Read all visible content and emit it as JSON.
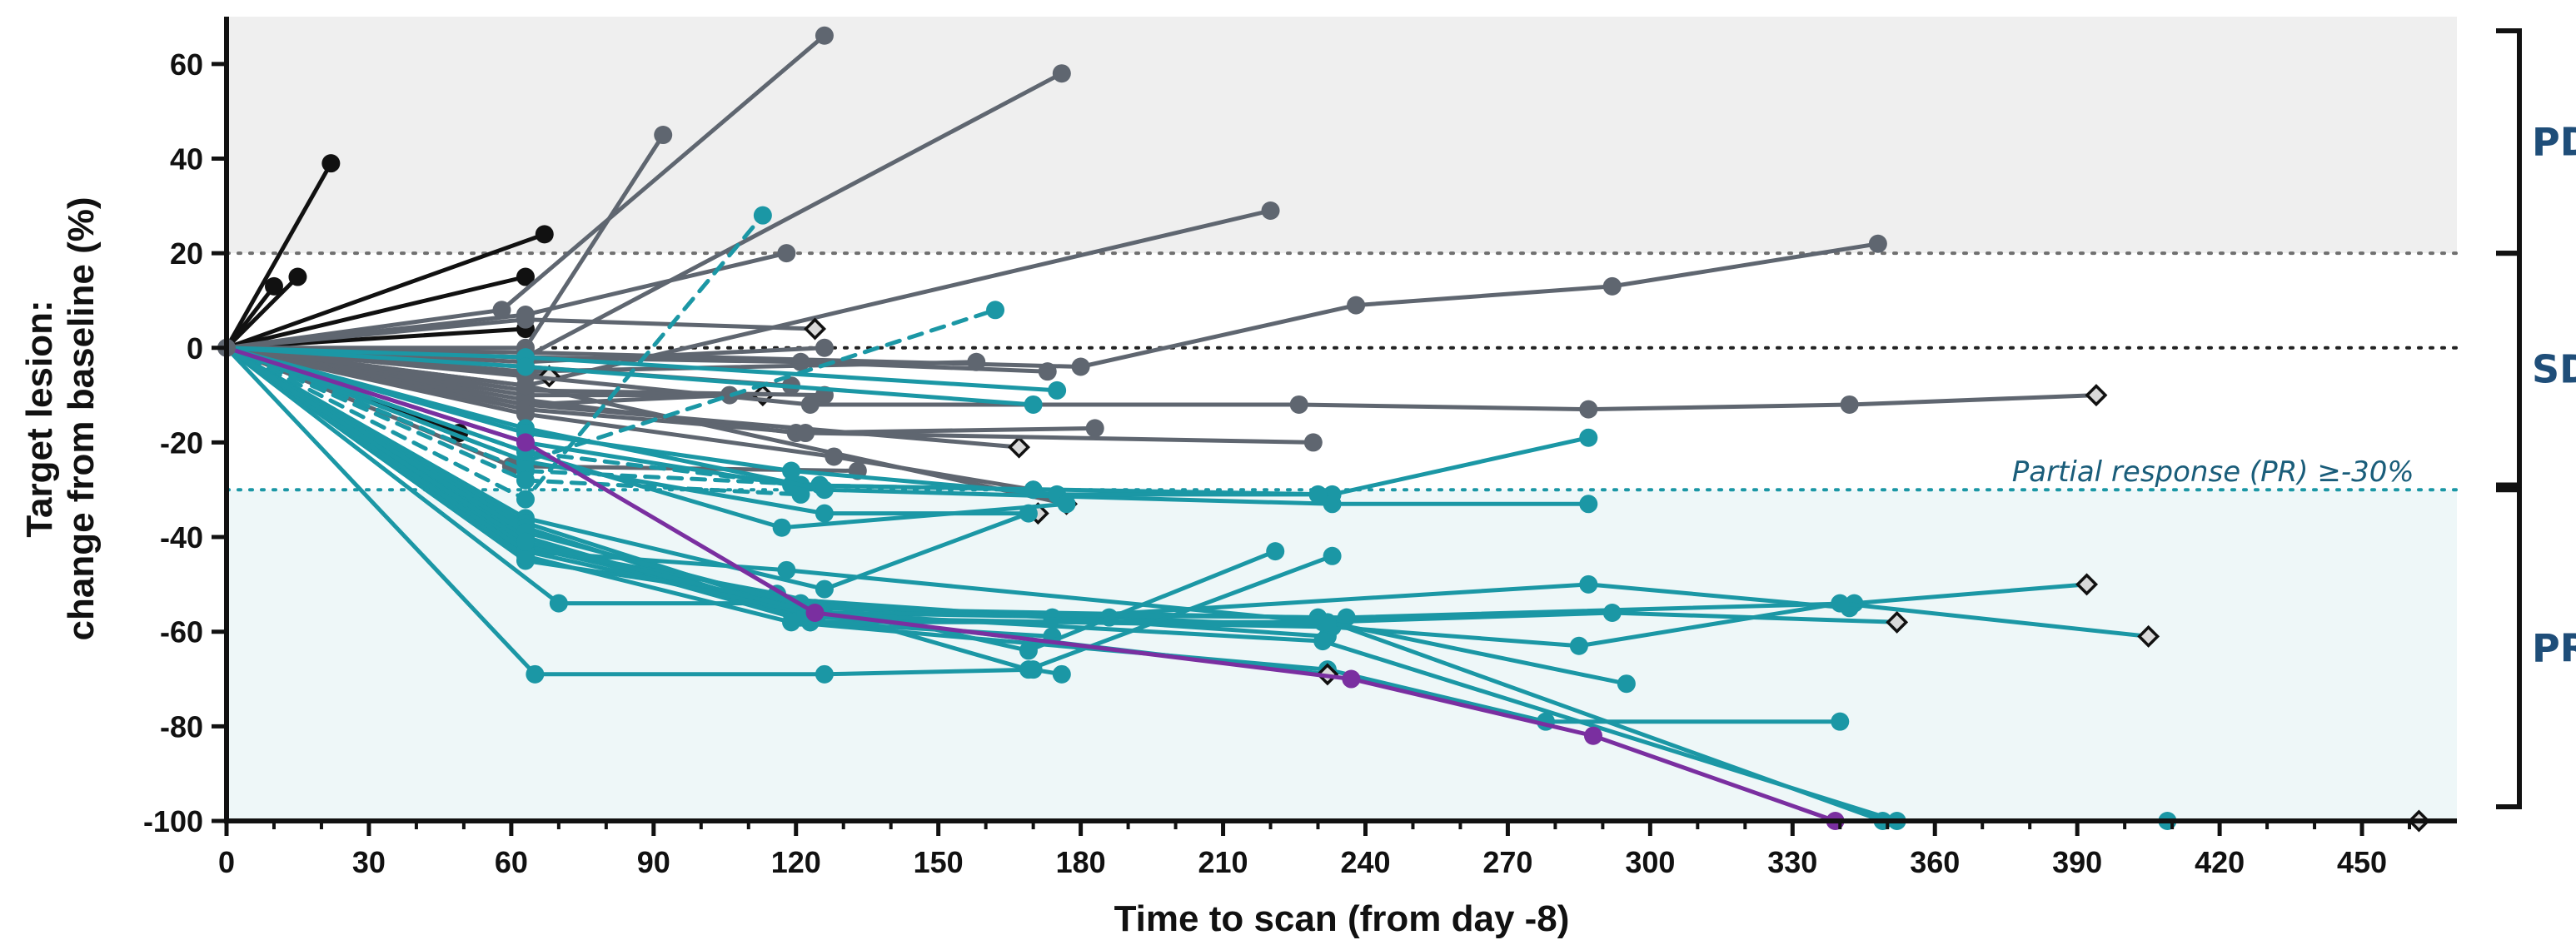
{
  "colors": {
    "pd_band": "#efefef",
    "pr_band": "#eef7f8",
    "black": "#111111",
    "gray": "#5f6670",
    "teal": "#1b97a5",
    "purple": "#7a2fa0",
    "region_label": "#1f4e79"
  },
  "chart_data": {
    "type": "line",
    "xlabel": "Time to scan (from day -8)",
    "ylabel_lines": [
      "Target lesion:",
      "change from baseline (%)"
    ],
    "xlim": [
      0,
      470
    ],
    "ylim": [
      -100,
      70
    ],
    "x_ticks": [
      0,
      30,
      60,
      90,
      120,
      150,
      180,
      210,
      240,
      270,
      300,
      330,
      360,
      390,
      420,
      450
    ],
    "y_ticks": [
      60,
      40,
      20,
      0,
      -20,
      -40,
      -60,
      -80,
      -100
    ],
    "grid": false,
    "bands": [
      {
        "name": "PD",
        "from": 20,
        "to": 70
      },
      {
        "name": "PR",
        "from": -100,
        "to": -30
      }
    ],
    "reference_lines": [
      {
        "y": 20,
        "style": "dotted",
        "color": "gray"
      },
      {
        "y": 0,
        "style": "dotted",
        "color": "black"
      },
      {
        "y": -30,
        "style": "dotted",
        "color": "teal"
      }
    ],
    "annotations": {
      "pr_threshold": "Partial response (PR) ≥-30%"
    },
    "region_labels": [
      {
        "label": "PD",
        "from": 20,
        "to": 67
      },
      {
        "label": "SD",
        "from": -29,
        "to": 20
      },
      {
        "label": "PR",
        "from": -97,
        "to": -30
      }
    ],
    "series": [
      {
        "group": "black",
        "points": [
          [
            0,
            0
          ],
          [
            10,
            13
          ]
        ]
      },
      {
        "group": "black",
        "points": [
          [
            0,
            0
          ],
          [
            15,
            15
          ]
        ]
      },
      {
        "group": "black",
        "points": [
          [
            0,
            0
          ],
          [
            22,
            39
          ]
        ]
      },
      {
        "group": "black",
        "points": [
          [
            0,
            0
          ],
          [
            63,
            15
          ]
        ]
      },
      {
        "group": "black",
        "points": [
          [
            0,
            0
          ],
          [
            67,
            24
          ]
        ]
      },
      {
        "group": "black",
        "points": [
          [
            0,
            0
          ],
          [
            63,
            4
          ]
        ]
      },
      {
        "group": "black",
        "points": [
          [
            0,
            0
          ],
          [
            49,
            -18
          ]
        ]
      },
      {
        "group": "gray",
        "points": [
          [
            0,
            0
          ],
          [
            58,
            8
          ],
          [
            126,
            66
          ]
        ]
      },
      {
        "group": "gray",
        "points": [
          [
            0,
            0
          ],
          [
            63,
            0
          ],
          [
            92,
            45
          ]
        ]
      },
      {
        "group": "gray",
        "points": [
          [
            0,
            0
          ],
          [
            63,
            -2
          ],
          [
            176,
            58
          ]
        ]
      },
      {
        "group": "gray",
        "points": [
          [
            0,
            0
          ],
          [
            63,
            -8
          ],
          [
            220,
            29
          ]
        ]
      },
      {
        "group": "gray",
        "points": [
          [
            0,
            0
          ],
          [
            63,
            7
          ],
          [
            118,
            20
          ]
        ]
      },
      {
        "group": "gray",
        "points": [
          [
            0,
            0
          ],
          [
            63,
            6
          ],
          [
            124,
            4
          ]
        ],
        "end_marker": "diamond"
      },
      {
        "group": "gray",
        "points": [
          [
            0,
            0
          ],
          [
            63,
            -3
          ],
          [
            126,
            0
          ]
        ]
      },
      {
        "group": "gray",
        "points": [
          [
            0,
            0
          ],
          [
            63,
            -2
          ],
          [
            121,
            -3
          ],
          [
            173,
            -5
          ]
        ]
      },
      {
        "group": "gray",
        "points": [
          [
            0,
            0
          ],
          [
            63,
            -5
          ],
          [
            158,
            -3
          ]
        ]
      },
      {
        "group": "gray",
        "points": [
          [
            0,
            0
          ],
          [
            63,
            -1
          ],
          [
            180,
            -4
          ],
          [
            238,
            9
          ],
          [
            292,
            13
          ],
          [
            348,
            22
          ]
        ]
      },
      {
        "group": "gray",
        "points": [
          [
            0,
            0
          ],
          [
            68,
            -6
          ]
        ],
        "end_marker": "diamond"
      },
      {
        "group": "gray",
        "points": [
          [
            0,
            0
          ],
          [
            63,
            -10
          ],
          [
            113,
            -10
          ]
        ],
        "end_marker": "diamond"
      },
      {
        "group": "gray",
        "points": [
          [
            0,
            0
          ],
          [
            63,
            -12
          ],
          [
            106,
            -10
          ]
        ]
      },
      {
        "group": "gray",
        "points": [
          [
            0,
            0
          ],
          [
            63,
            -9
          ],
          [
            126,
            -10
          ]
        ]
      },
      {
        "group": "gray",
        "points": [
          [
            0,
            0
          ],
          [
            63,
            -4
          ],
          [
            119,
            -8
          ]
        ]
      },
      {
        "group": "gray",
        "points": [
          [
            0,
            0
          ],
          [
            63,
            -6
          ],
          [
            123,
            -12
          ],
          [
            226,
            -12
          ],
          [
            287,
            -13
          ],
          [
            342,
            -12
          ],
          [
            394,
            -10
          ]
        ],
        "end_marker": "diamond"
      },
      {
        "group": "gray",
        "points": [
          [
            0,
            0
          ],
          [
            63,
            -11
          ],
          [
            120,
            -18
          ],
          [
            183,
            -17
          ]
        ]
      },
      {
        "group": "gray",
        "points": [
          [
            0,
            0
          ],
          [
            63,
            -12
          ],
          [
            167,
            -21
          ]
        ],
        "end_marker": "diamond"
      },
      {
        "group": "gray",
        "points": [
          [
            0,
            0
          ],
          [
            63,
            -13
          ],
          [
            122,
            -18
          ],
          [
            229,
            -20
          ]
        ]
      },
      {
        "group": "gray",
        "points": [
          [
            0,
            0
          ],
          [
            63,
            -14
          ],
          [
            128,
            -23
          ],
          [
            170,
            -30
          ]
        ]
      },
      {
        "group": "gray",
        "points": [
          [
            0,
            0
          ],
          [
            63,
            -8
          ],
          [
            177,
            -33
          ]
        ],
        "end_marker": "diamond"
      },
      {
        "group": "gray",
        "points": [
          [
            0,
            0
          ],
          [
            60,
            -25
          ],
          [
            133,
            -26
          ]
        ]
      },
      {
        "group": "teal",
        "points": [
          [
            0,
            0
          ],
          [
            63,
            -32
          ],
          [
            113,
            28
          ]
        ],
        "dashed": true
      },
      {
        "group": "teal",
        "points": [
          [
            0,
            0
          ],
          [
            63,
            -24
          ],
          [
            162,
            8
          ]
        ],
        "dashed": true
      },
      {
        "group": "teal",
        "points": [
          [
            0,
            0
          ],
          [
            63,
            -22
          ],
          [
            121,
            -29
          ],
          [
            170,
            -30
          ]
        ],
        "dashed": true
      },
      {
        "group": "teal",
        "points": [
          [
            0,
            0
          ],
          [
            63,
            -26
          ],
          [
            125,
            -29
          ]
        ],
        "dashed": true
      },
      {
        "group": "teal",
        "points": [
          [
            0,
            0
          ],
          [
            63,
            -28
          ],
          [
            121,
            -31
          ]
        ],
        "dashed": true
      },
      {
        "group": "teal",
        "points": [
          [
            0,
            0
          ],
          [
            63,
            -2
          ],
          [
            175,
            -9
          ]
        ]
      },
      {
        "group": "teal",
        "points": [
          [
            0,
            0
          ],
          [
            63,
            -4
          ],
          [
            170,
            -12
          ]
        ]
      },
      {
        "group": "teal",
        "points": [
          [
            0,
            0
          ],
          [
            63,
            -20
          ],
          [
            119,
            -29
          ],
          [
            233,
            -31
          ],
          [
            287,
            -19
          ]
        ]
      },
      {
        "group": "teal",
        "points": [
          [
            0,
            0
          ],
          [
            63,
            -17
          ],
          [
            126,
            -30
          ],
          [
            233,
            -33
          ],
          [
            287,
            -33
          ]
        ]
      },
      {
        "group": "teal",
        "points": [
          [
            0,
            0
          ],
          [
            63,
            -18
          ],
          [
            119,
            -26
          ],
          [
            175,
            -31
          ],
          [
            230,
            -31
          ]
        ]
      },
      {
        "group": "teal",
        "points": [
          [
            0,
            0
          ],
          [
            63,
            -24
          ],
          [
            126,
            -35
          ],
          [
            171,
            -35
          ]
        ],
        "end_marker": "diamond"
      },
      {
        "group": "teal",
        "points": [
          [
            0,
            0
          ],
          [
            63,
            -22
          ],
          [
            117,
            -38
          ],
          [
            177,
            -33
          ]
        ]
      },
      {
        "group": "teal",
        "points": [
          [
            0,
            0
          ],
          [
            63,
            -36
          ],
          [
            126,
            -51
          ],
          [
            169,
            -35
          ]
        ]
      },
      {
        "group": "teal",
        "points": [
          [
            0,
            0
          ],
          [
            63,
            -40
          ],
          [
            123,
            -58
          ],
          [
            174,
            -61
          ]
        ]
      },
      {
        "group": "teal",
        "points": [
          [
            0,
            0
          ],
          [
            63,
            -42
          ],
          [
            125,
            -56
          ],
          [
            186,
            -57
          ],
          [
            233,
            -59
          ]
        ],
        "end_marker": "diamond"
      },
      {
        "group": "teal",
        "points": [
          [
            0,
            0
          ],
          [
            63,
            -37
          ],
          [
            119,
            -55
          ],
          [
            230,
            -57
          ],
          [
            349,
            -100
          ],
          [
            409,
            -100
          ]
        ]
      },
      {
        "group": "teal",
        "points": [
          [
            0,
            0
          ],
          [
            63,
            -45
          ],
          [
            116,
            -53
          ],
          [
            232,
            -61
          ]
        ]
      },
      {
        "group": "teal",
        "points": [
          [
            0,
            0
          ],
          [
            70,
            -54
          ],
          [
            121,
            -54
          ],
          [
            174,
            -57
          ],
          [
            287,
            -50
          ],
          [
            342,
            -55
          ]
        ]
      },
      {
        "group": "teal",
        "points": [
          [
            0,
            0
          ],
          [
            63,
            -38
          ],
          [
            119,
            -56
          ],
          [
            236,
            -57
          ],
          [
            343,
            -54
          ],
          [
            392,
            -50
          ]
        ],
        "end_marker": "diamond"
      },
      {
        "group": "teal",
        "points": [
          [
            0,
            0
          ],
          [
            63,
            -43
          ],
          [
            118,
            -47
          ],
          [
            231,
            -58
          ],
          [
            292,
            -56
          ],
          [
            352,
            -58
          ]
        ],
        "end_marker": "diamond"
      },
      {
        "group": "teal",
        "points": [
          [
            0,
            0
          ],
          [
            63,
            -40
          ],
          [
            121,
            -57
          ],
          [
            233,
            -59
          ],
          [
            285,
            -63
          ],
          [
            340,
            -54
          ],
          [
            405,
            -61
          ]
        ],
        "end_marker": "diamond"
      },
      {
        "group": "teal",
        "points": [
          [
            0,
            0
          ],
          [
            63,
            -41
          ],
          [
            123,
            -58
          ],
          [
            232,
            -58
          ],
          [
            295,
            -71
          ]
        ]
      },
      {
        "group": "teal",
        "points": [
          [
            0,
            0
          ],
          [
            63,
            -44
          ],
          [
            119,
            -58
          ],
          [
            232,
            -68
          ],
          [
            278,
            -79
          ],
          [
            340,
            -79
          ]
        ]
      },
      {
        "group": "teal",
        "points": [
          [
            0,
            0
          ],
          [
            63,
            -42
          ],
          [
            116,
            -52
          ],
          [
            169,
            -64
          ],
          [
            221,
            -43
          ]
        ]
      },
      {
        "group": "teal",
        "points": [
          [
            0,
            0
          ],
          [
            63,
            -39
          ],
          [
            124,
            -55
          ],
          [
            169,
            -68
          ],
          [
            233,
            -44
          ]
        ]
      },
      {
        "group": "teal",
        "points": [
          [
            0,
            0
          ],
          [
            63,
            -43
          ],
          [
            122,
            -56
          ],
          [
            232,
            -69
          ]
        ],
        "end_marker": "diamond"
      },
      {
        "group": "teal",
        "points": [
          [
            0,
            0
          ],
          [
            63,
            -41
          ],
          [
            124,
            -56
          ],
          [
            231,
            -62
          ],
          [
            352,
            -100
          ],
          [
            462,
            -100
          ]
        ],
        "end_marker": "diamond"
      },
      {
        "group": "teal",
        "points": [
          [
            0,
            0
          ],
          [
            65,
            -69
          ],
          [
            126,
            -69
          ],
          [
            170,
            -68
          ],
          [
            176,
            -69
          ]
        ]
      },
      {
        "group": "purple",
        "points": [
          [
            0,
            0
          ],
          [
            63,
            -20
          ],
          [
            124,
            -56
          ],
          [
            237,
            -70
          ],
          [
            288,
            -82
          ],
          [
            339,
            -100
          ]
        ]
      }
    ]
  }
}
